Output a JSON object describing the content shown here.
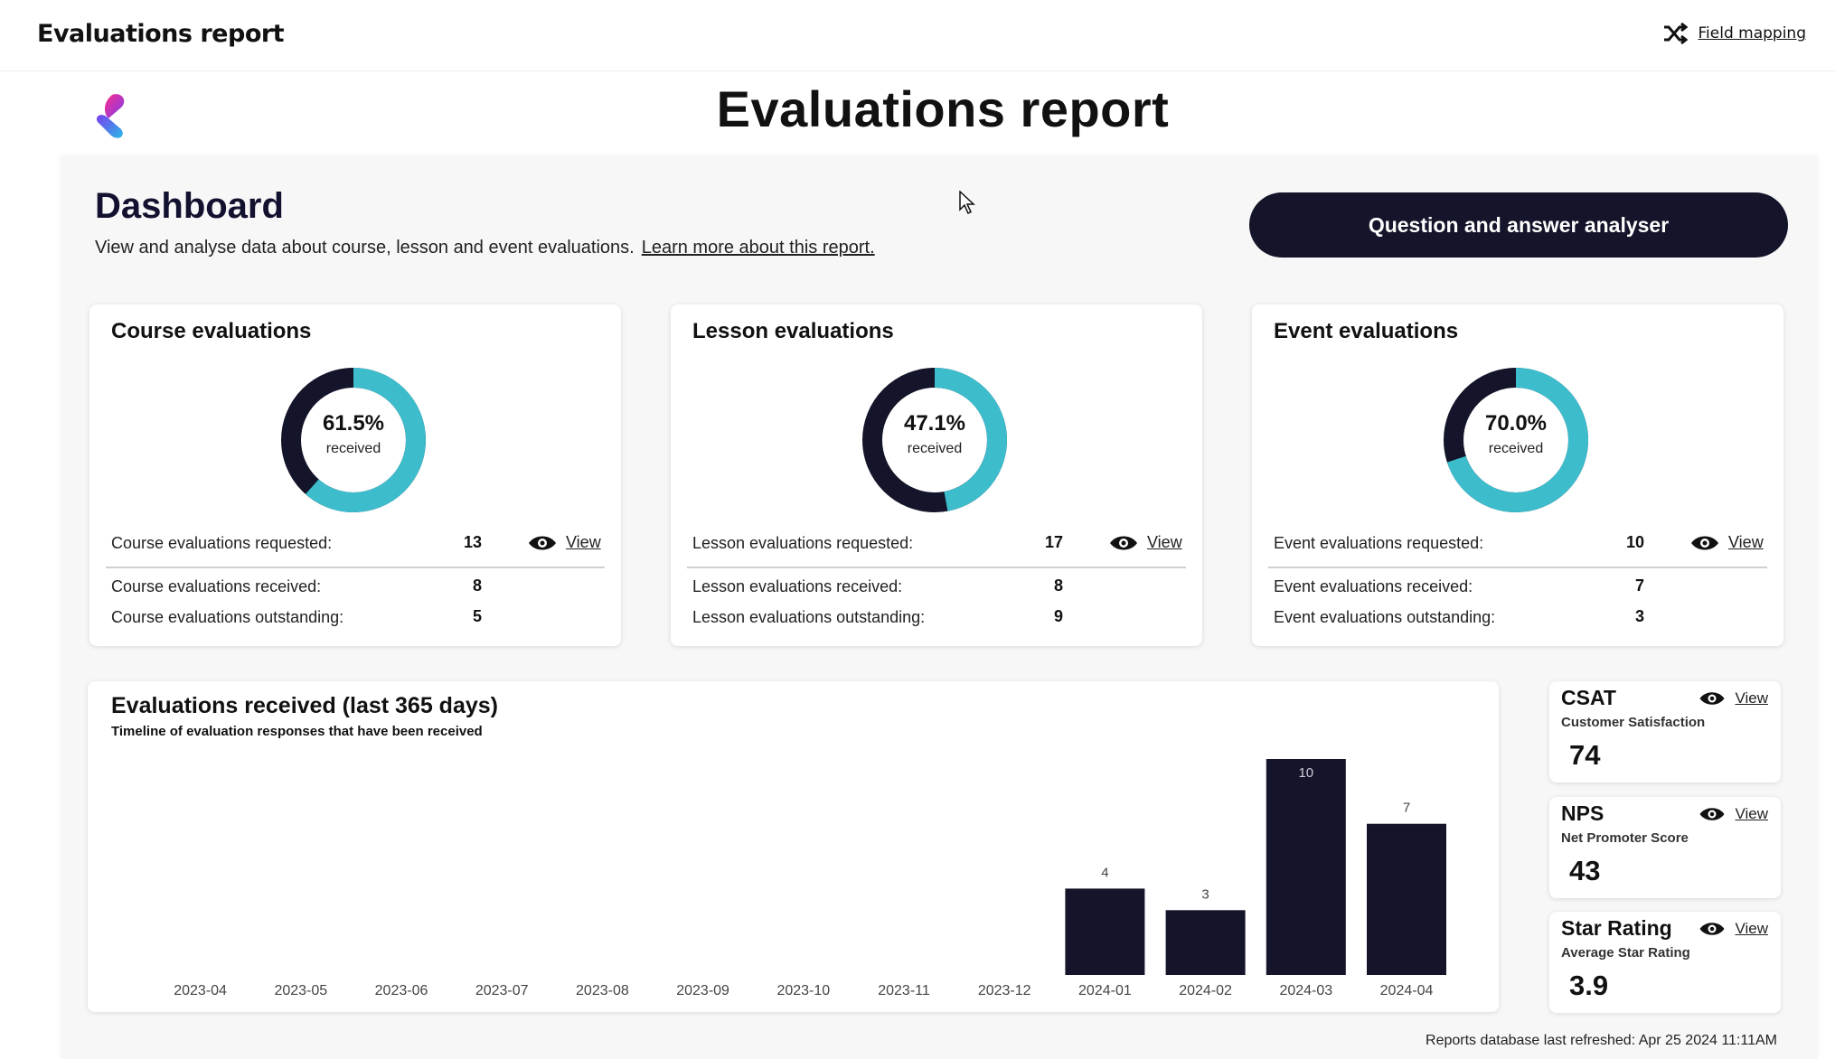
{
  "topbar": {
    "title": "Evaluations report",
    "field_mapping": "Field mapping"
  },
  "header": {
    "title": "Evaluations report"
  },
  "dashboard": {
    "title": "Dashboard",
    "description": "View and analyse data about course, lesson and event evaluations.",
    "learn_more": "Learn more about this report.",
    "qa_button": "Question and answer analyser"
  },
  "cards": [
    {
      "title": "Course evaluations",
      "percent": "61.5%",
      "fraction": 0.615,
      "received_label": "received",
      "requested_label": "Course evaluations requested:",
      "requested": "13",
      "rec_label": "Course evaluations received:",
      "rec": "8",
      "out_label": "Course evaluations outstanding:",
      "out": "5",
      "view": "View"
    },
    {
      "title": "Lesson evaluations",
      "percent": "47.1%",
      "fraction": 0.471,
      "received_label": "received",
      "requested_label": "Lesson evaluations requested:",
      "requested": "17",
      "rec_label": "Lesson evaluations received:",
      "rec": "8",
      "out_label": "Lesson evaluations outstanding:",
      "out": "9",
      "view": "View"
    },
    {
      "title": "Event evaluations",
      "percent": "70.0%",
      "fraction": 0.7,
      "received_label": "received",
      "requested_label": "Event evaluations requested:",
      "requested": "10",
      "rec_label": "Event evaluations received:",
      "rec": "7",
      "out_label": "Event evaluations outstanding:",
      "out": "3",
      "view": "View"
    }
  ],
  "chart": {
    "title": "Evaluations received (last 365 days)",
    "subtitle": "Timeline of evaluation responses that have been received"
  },
  "chart_data": {
    "type": "bar",
    "categories": [
      "2023-04",
      "2023-05",
      "2023-06",
      "2023-07",
      "2023-08",
      "2023-09",
      "2023-10",
      "2023-11",
      "2023-12",
      "2024-01",
      "2024-02",
      "2024-03",
      "2024-04"
    ],
    "values": [
      0,
      0,
      0,
      0,
      0,
      0,
      0,
      0,
      0,
      4,
      3,
      10,
      7
    ],
    "title": "Evaluations received (last 365 days)",
    "subtitle": "Timeline of evaluation responses that have been received",
    "ylim": [
      0,
      10
    ],
    "grid": false,
    "bar_color": "#14142a"
  },
  "kpis": [
    {
      "title": "CSAT",
      "subtitle": "Customer Satisfaction",
      "value": "74",
      "view": "View"
    },
    {
      "title": "NPS",
      "subtitle": "Net Promoter Score",
      "value": "43",
      "view": "View"
    },
    {
      "title": "Star Rating",
      "subtitle": "Average Star Rating",
      "value": "3.9",
      "view": "View"
    }
  ],
  "footer": {
    "refreshed": "Reports database last refreshed: Apr 25 2024 11:11AM"
  },
  "colors": {
    "accent": "#3dbccc",
    "dark": "#14142a"
  },
  "icons": {
    "field_mapping": "shuffle-icon",
    "view": "eye-icon",
    "logo": "brand-logo"
  }
}
